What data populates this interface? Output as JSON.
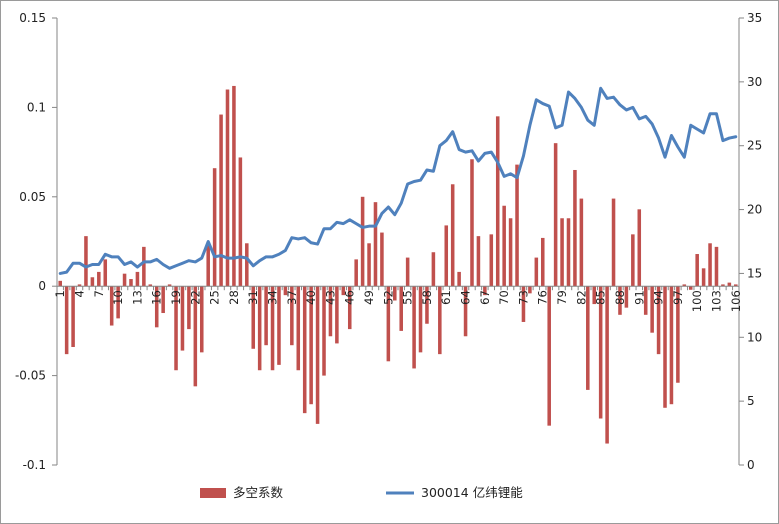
{
  "chart_data": {
    "type": "bar+line",
    "title": "",
    "xlabel": "",
    "ylabel_left": "",
    "ylabel_right": "",
    "left_axis": {
      "min": -0.1,
      "max": 0.15,
      "ticks": [
        -0.1,
        -0.05,
        0,
        0.05,
        0.1,
        0.15
      ],
      "tick_labels": [
        "-0.1",
        "-0.05",
        "0",
        "0.05",
        "0.1",
        "0.15"
      ]
    },
    "right_axis": {
      "min": 0,
      "max": 35,
      "ticks": [
        0,
        5,
        10,
        15,
        20,
        25,
        30,
        35
      ],
      "tick_labels": [
        "0",
        "5",
        "10",
        "15",
        "20",
        "25",
        "30",
        "35"
      ]
    },
    "x": {
      "count": 106,
      "tick_labels": [
        "1",
        "4",
        "7",
        "10",
        "13",
        "16",
        "19",
        "22",
        "25",
        "28",
        "31",
        "34",
        "37",
        "40",
        "43",
        "46",
        "49",
        "52",
        "55",
        "58",
        "61",
        "64",
        "67",
        "70",
        "73",
        "76",
        "79",
        "82",
        "85",
        "88",
        "91",
        "94",
        "97",
        "100",
        "103",
        "106"
      ]
    },
    "grid": false,
    "legend_position": "bottom",
    "series": [
      {
        "name": "多空系数",
        "kind": "bar",
        "axis": "left",
        "color": "#c0504d",
        "values": [
          0.003,
          -0.038,
          -0.034,
          0.001,
          0.028,
          0.005,
          0.008,
          0.015,
          -0.022,
          -0.018,
          0.007,
          0.004,
          0.008,
          0.022,
          0.001,
          -0.023,
          -0.015,
          0.001,
          -0.047,
          -0.036,
          -0.024,
          -0.056,
          -0.037,
          0.023,
          0.066,
          0.096,
          0.11,
          0.112,
          0.072,
          0.024,
          -0.035,
          -0.047,
          -0.033,
          -0.047,
          -0.044,
          -0.005,
          -0.033,
          -0.047,
          -0.071,
          -0.066,
          -0.077,
          -0.05,
          -0.028,
          -0.032,
          -0.005,
          -0.024,
          0.015,
          0.05,
          0.024,
          0.047,
          0.03,
          -0.042,
          -0.008,
          -0.025,
          0.016,
          -0.046,
          -0.037,
          -0.021,
          0.019,
          -0.038,
          0.034,
          0.057,
          0.008,
          -0.028,
          0.071,
          0.028,
          -0.005,
          0.029,
          0.095,
          0.045,
          0.038,
          0.068,
          -0.02,
          -0.004,
          0.016,
          0.027,
          -0.078,
          0.08,
          0.038,
          0.038,
          0.065,
          0.049,
          -0.058,
          -0.01,
          -0.074,
          -0.088,
          0.049,
          -0.016,
          -0.012,
          0.029,
          0.043,
          -0.016,
          -0.026,
          -0.038,
          -0.068,
          -0.066,
          -0.054,
          0.001,
          -0.002,
          0.018,
          0.01,
          0.024,
          0.022,
          0.001,
          0.002,
          0.001
        ]
      },
      {
        "name": "300014 亿纬锂能",
        "kind": "line",
        "axis": "right",
        "color": "#4f81bd",
        "values": [
          15.0,
          15.1,
          15.8,
          15.8,
          15.5,
          15.7,
          15.7,
          16.5,
          16.3,
          16.3,
          15.7,
          15.9,
          15.5,
          15.9,
          15.9,
          16.1,
          15.7,
          15.4,
          15.6,
          15.8,
          16.0,
          15.9,
          16.2,
          17.5,
          16.3,
          16.4,
          16.2,
          16.2,
          16.3,
          16.2,
          15.6,
          16.0,
          16.3,
          16.3,
          16.5,
          16.8,
          17.8,
          17.7,
          17.8,
          17.4,
          17.3,
          18.5,
          18.5,
          19.0,
          18.9,
          19.2,
          18.9,
          18.6,
          18.7,
          18.7,
          19.7,
          20.2,
          19.6,
          20.5,
          22.0,
          22.2,
          22.3,
          23.1,
          23.0,
          25.0,
          25.4,
          26.1,
          24.7,
          24.5,
          24.6,
          23.8,
          24.4,
          24.5,
          23.7,
          22.6,
          22.8,
          22.5,
          24.2,
          26.6,
          28.6,
          28.3,
          28.1,
          26.4,
          26.6,
          29.2,
          28.7,
          28.0,
          27.0,
          26.6,
          29.5,
          28.7,
          28.8,
          28.2,
          27.8,
          28.0,
          27.1,
          27.3,
          26.7,
          25.6,
          24.1,
          25.8,
          24.9,
          24.1,
          26.6,
          26.3,
          26.0,
          27.5,
          27.5,
          25.4,
          25.6,
          25.7
        ]
      }
    ]
  }
}
